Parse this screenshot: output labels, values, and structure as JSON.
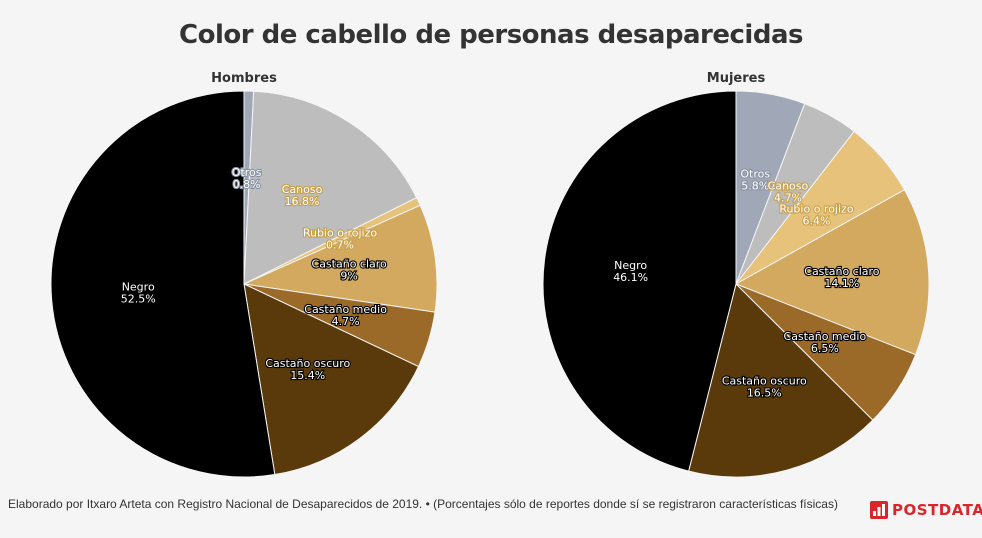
{
  "title": "Color de cabello de personas desaparecidas",
  "chart_data": [
    {
      "type": "pie",
      "title": "Hombres",
      "categories": [
        "Otros",
        "Canoso",
        "Rubio o rojizo",
        "Castaño claro",
        "Castaño medio",
        "Castaño oscuro",
        "Negro"
      ],
      "values": [
        0.8,
        16.8,
        0.7,
        9,
        4.7,
        15.4,
        52.5
      ],
      "labels": [
        "0.8%",
        "16.8%",
        "0.7%",
        "9%",
        "4.7%",
        "15.4%",
        "52.5%"
      ],
      "colors": [
        "#a0a8b8",
        "#bdbdbd",
        "#e6c27a",
        "#d2a95e",
        "#9c6a28",
        "#5a3a0a",
        "#000000"
      ]
    },
    {
      "type": "pie",
      "title": "Mujeres",
      "categories": [
        "Otros",
        "Canoso",
        "Rubio o rojizo",
        "Castaño claro",
        "Castaño medio",
        "Castaño oscuro",
        "Negro"
      ],
      "values": [
        5.8,
        4.7,
        6.4,
        14.1,
        6.5,
        16.5,
        46.1
      ],
      "labels": [
        "5.8%",
        "4.7%",
        "6.4%",
        "14.1%",
        "6.5%",
        "16.5%",
        "46.1%"
      ],
      "colors": [
        "#a0a8b8",
        "#bdbdbd",
        "#e6c27a",
        "#d2a95e",
        "#9c6a28",
        "#5a3a0a",
        "#000000"
      ]
    }
  ],
  "footer": "Elaborado por Itxaro Arteta con Registro Nacional de Desaparecidos de 2019. • (Porcentajes sólo de reportes donde sí se registraron características físicas)",
  "brand": "POSTDATA",
  "brand_color": "#d9262b"
}
